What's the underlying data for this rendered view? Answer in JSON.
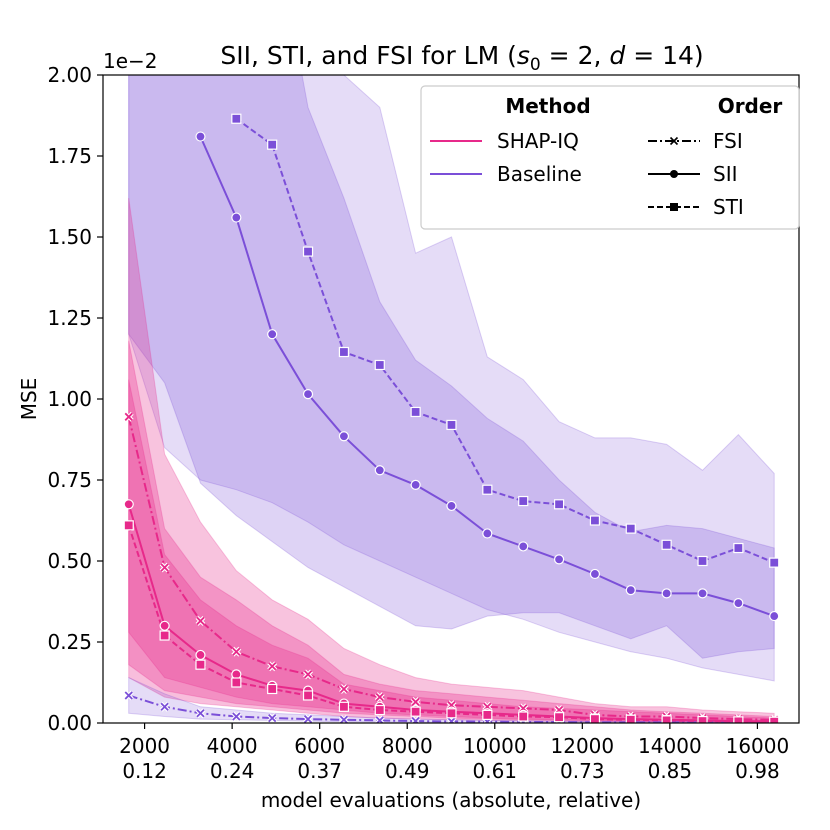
{
  "chart_data": {
    "type": "line",
    "title_prefix": "SII, STI, and FSI for LM (",
    "title_math": [
      "s",
      "0",
      " = 2, ",
      "d",
      " = 14",
      ")"
    ],
    "offset_label": "1e−2",
    "xlabel": "model evaluations (absolute, relative)",
    "ylabel": "MSE",
    "xlim": [
      1050,
      16950
    ],
    "ylim": [
      0,
      2.0
    ],
    "yticks": [
      0,
      0.25,
      0.5,
      0.75,
      1.0,
      1.25,
      1.5,
      1.75,
      2.0
    ],
    "ytick_labels": [
      "0.00",
      "0.25",
      "0.50",
      "0.75",
      "1.00",
      "1.25",
      "1.50",
      "1.75",
      "2.00"
    ],
    "xticks": [
      2000,
      4000,
      6000,
      8000,
      10000,
      12000,
      14000,
      16000
    ],
    "xtick_labels_abs": [
      "2000",
      "4000",
      "6000",
      "8000",
      "10000",
      "12000",
      "14000",
      "16000"
    ],
    "xtick_labels_rel": [
      "0.12",
      "0.24",
      "0.37",
      "0.49",
      "0.61",
      "0.73",
      "0.85",
      "0.98"
    ],
    "x": [
      1638,
      2458,
      3277,
      4096,
      4915,
      5734,
      6554,
      7373,
      8192,
      9011,
      9830,
      10650,
      11469,
      12288,
      13107,
      13926,
      14746,
      15565,
      16384
    ],
    "colors": {
      "shapiq": "#e7298a",
      "baseline": "#7b4fd8"
    },
    "legend": {
      "method_title": "Method",
      "order_title": "Order",
      "methods": [
        "SHAP-IQ",
        "Baseline"
      ],
      "orders": [
        "FSI",
        "SII",
        "STI"
      ]
    },
    "bands": [
      {
        "name": "baseline-sti-band",
        "color": "baseline",
        "opacity": 0.2,
        "lower": [
          1.2,
          0.85,
          0.75,
          0.72,
          0.68,
          0.62,
          0.55,
          0.5,
          0.45,
          0.4,
          0.35,
          0.32,
          0.28,
          0.25,
          0.22,
          0.2,
          0.17,
          0.15,
          0.13
        ],
        "upper": [
          2.5,
          2.5,
          2.5,
          2.5,
          2.5,
          2.5,
          2.0,
          1.9,
          1.45,
          1.5,
          1.13,
          1.06,
          0.93,
          0.88,
          0.88,
          0.86,
          0.78,
          0.89,
          0.77
        ]
      },
      {
        "name": "baseline-sii-band",
        "color": "baseline",
        "opacity": 0.25,
        "lower": [
          1.2,
          1.05,
          0.74,
          0.64,
          0.56,
          0.48,
          0.42,
          0.36,
          0.3,
          0.29,
          0.33,
          0.34,
          0.34,
          0.3,
          0.26,
          0.3,
          0.2,
          0.22,
          0.23
        ],
        "upper": [
          2.5,
          2.5,
          2.5,
          2.5,
          2.5,
          1.9,
          1.62,
          1.3,
          1.12,
          1.04,
          0.94,
          0.87,
          0.75,
          0.65,
          0.59,
          0.61,
          0.6,
          0.57,
          0.54
        ]
      },
      {
        "name": "shapiq-fsi-band",
        "color": "shapiq",
        "opacity": 0.28,
        "lower": [
          0.28,
          0.14,
          0.11,
          0.08,
          0.06,
          0.05,
          0.04,
          0.03,
          0.025,
          0.02,
          0.015,
          0.012,
          0.01,
          0.008,
          0.006,
          0.005,
          0.004,
          0.003,
          0.002
        ],
        "upper": [
          1.62,
          0.83,
          0.62,
          0.47,
          0.38,
          0.32,
          0.23,
          0.18,
          0.14,
          0.12,
          0.11,
          0.1,
          0.08,
          0.06,
          0.05,
          0.05,
          0.04,
          0.035,
          0.03
        ]
      },
      {
        "name": "shapiq-sii-band",
        "color": "shapiq",
        "opacity": 0.3,
        "lower": [
          0.18,
          0.1,
          0.08,
          0.06,
          0.05,
          0.04,
          0.03,
          0.025,
          0.02,
          0.015,
          0.012,
          0.01,
          0.008,
          0.006,
          0.005,
          0.004,
          0.003,
          0.002,
          0.002
        ],
        "upper": [
          1.18,
          0.6,
          0.45,
          0.38,
          0.3,
          0.24,
          0.15,
          0.12,
          0.1,
          0.09,
          0.08,
          0.07,
          0.06,
          0.05,
          0.04,
          0.035,
          0.03,
          0.025,
          0.02
        ]
      },
      {
        "name": "shapiq-sti-band",
        "color": "shapiq",
        "opacity": 0.3,
        "lower": [
          0.14,
          0.08,
          0.06,
          0.05,
          0.04,
          0.03,
          0.02,
          0.015,
          0.012,
          0.01,
          0.008,
          0.006,
          0.005,
          0.004,
          0.003,
          0.003,
          0.002,
          0.002,
          0.001
        ],
        "upper": [
          1.06,
          0.52,
          0.38,
          0.3,
          0.24,
          0.2,
          0.12,
          0.1,
          0.08,
          0.07,
          0.06,
          0.05,
          0.045,
          0.04,
          0.035,
          0.03,
          0.025,
          0.02,
          0.015
        ]
      },
      {
        "name": "baseline-fsi-band",
        "color": "baseline",
        "opacity": 0.2,
        "lower": [
          0.03,
          0.02,
          0.012,
          0.01,
          0.008,
          0.006,
          0.004,
          0.003,
          0.002,
          0.002,
          0.002,
          0.001,
          0.001,
          0.001,
          0.001,
          0.001,
          0.001,
          0.001,
          0.001
        ],
        "upper": [
          0.14,
          0.09,
          0.05,
          0.04,
          0.03,
          0.025,
          0.02,
          0.015,
          0.012,
          0.01,
          0.008,
          0.007,
          0.006,
          0.005,
          0.004,
          0.004,
          0.003,
          0.003,
          0.003
        ]
      }
    ],
    "series": [
      {
        "name": "Baseline STI",
        "method": "Baseline",
        "order": "STI",
        "color": "baseline",
        "dash": "6,3",
        "marker": "square",
        "values": [
          null,
          null,
          null,
          1.865,
          1.785,
          1.455,
          1.145,
          1.105,
          0.96,
          0.92,
          0.72,
          0.685,
          0.675,
          0.625,
          0.6,
          0.55,
          0.5,
          0.54,
          0.495
        ]
      },
      {
        "name": "Baseline SII",
        "method": "Baseline",
        "order": "SII",
        "color": "baseline",
        "dash": "",
        "marker": "circle",
        "values": [
          null,
          null,
          1.81,
          1.56,
          1.2,
          1.015,
          0.885,
          0.78,
          0.735,
          0.67,
          0.585,
          0.545,
          0.505,
          0.46,
          0.41,
          0.4,
          0.4,
          0.37,
          0.33
        ]
      },
      {
        "name": "Baseline FSI",
        "method": "Baseline",
        "order": "FSI",
        "color": "baseline",
        "dash": "9,3,2,3",
        "marker": "x",
        "values": [
          0.085,
          0.05,
          0.03,
          0.02,
          0.015,
          0.012,
          0.01,
          0.008,
          0.006,
          0.005,
          0.004,
          0.003,
          0.003,
          0.002,
          0.002,
          0.002,
          0.002,
          0.002,
          0.001
        ]
      },
      {
        "name": "SHAP-IQ FSI",
        "method": "SHAP-IQ",
        "order": "FSI",
        "color": "shapiq",
        "dash": "9,3,2,3",
        "marker": "x",
        "values": [
          0.945,
          0.48,
          0.315,
          0.22,
          0.175,
          0.15,
          0.105,
          0.08,
          0.065,
          0.055,
          0.05,
          0.045,
          0.04,
          0.025,
          0.02,
          0.02,
          0.015,
          0.012,
          0.01
        ]
      },
      {
        "name": "SHAP-IQ SII",
        "method": "SHAP-IQ",
        "order": "SII",
        "color": "shapiq",
        "dash": "",
        "marker": "circle",
        "values": [
          0.675,
          0.3,
          0.21,
          0.15,
          0.115,
          0.1,
          0.06,
          0.05,
          0.04,
          0.035,
          0.03,
          0.025,
          0.02,
          0.015,
          0.012,
          0.01,
          0.008,
          0.006,
          0.005
        ]
      },
      {
        "name": "SHAP-IQ STI",
        "method": "SHAP-IQ",
        "order": "STI",
        "color": "shapiq",
        "dash": "6,3",
        "marker": "square",
        "values": [
          0.61,
          0.27,
          0.18,
          0.125,
          0.105,
          0.085,
          0.05,
          0.04,
          0.035,
          0.03,
          0.025,
          0.02,
          0.018,
          0.012,
          0.01,
          0.008,
          0.006,
          0.005,
          0.004
        ]
      }
    ]
  }
}
